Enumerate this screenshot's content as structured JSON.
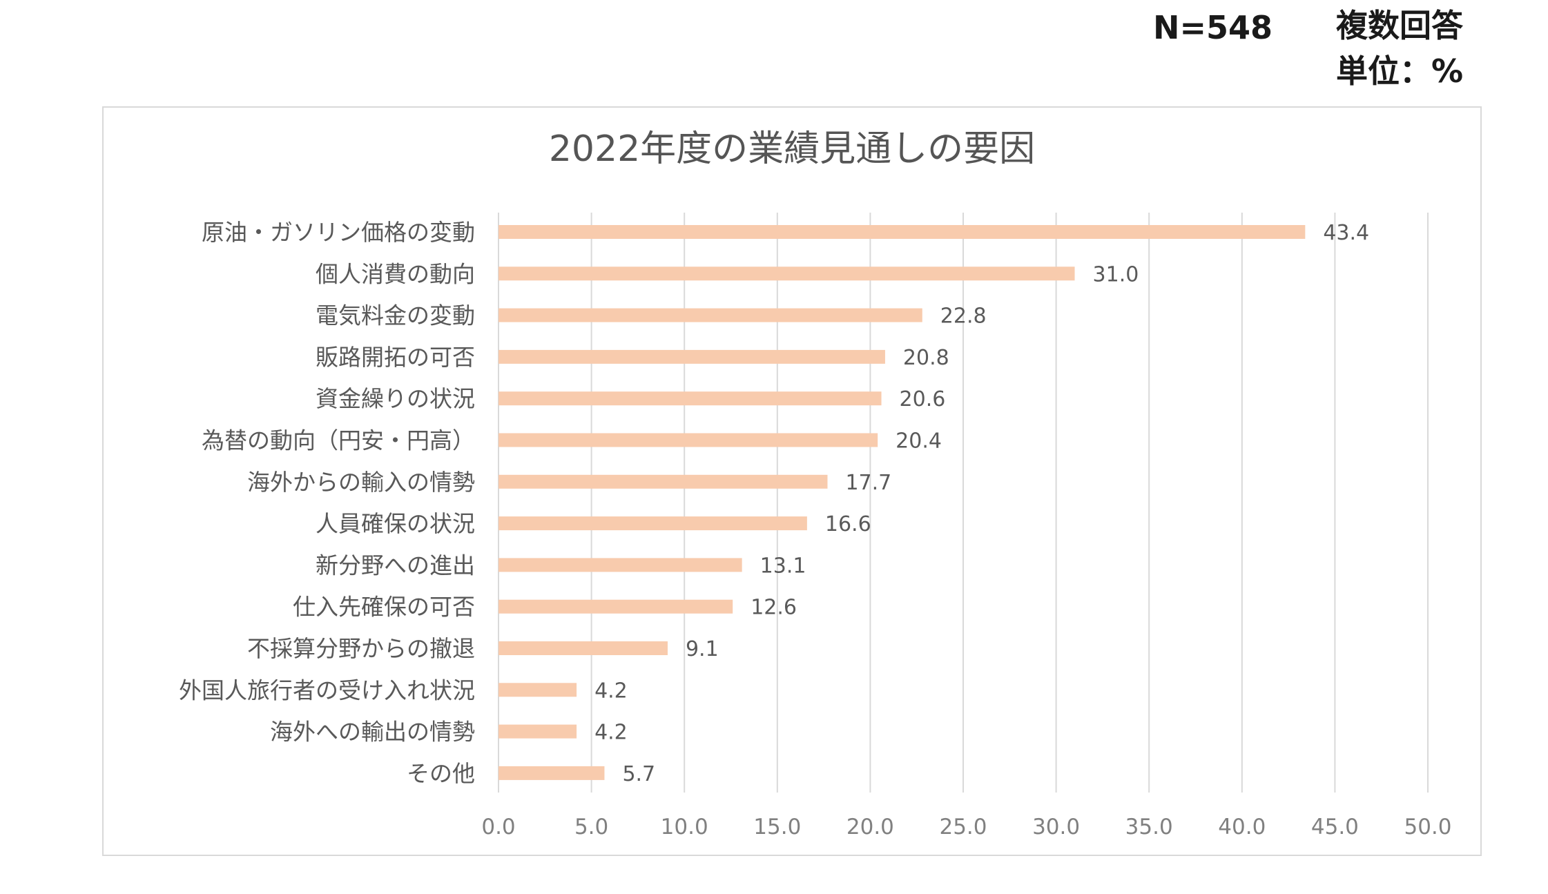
{
  "header": {
    "n_label": "N=548",
    "multi_label": "複数回答",
    "unit_label": "単位：%"
  },
  "chart_data": {
    "type": "bar",
    "orientation": "horizontal",
    "title": "2022年度の業績見通しの要因",
    "categories": [
      "原油・ガソリン価格の変動",
      "個人消費の動向",
      "電気料金の変動",
      "販路開拓の可否",
      "資金繰りの状況",
      "為替の動向（円安・円高）",
      "海外からの輸入の情勢",
      "人員確保の状況",
      "新分野への進出",
      "仕入先確保の可否",
      "不採算分野からの撤退",
      "外国人旅行者の受け入れ状況",
      "海外への輸出の情勢",
      "その他"
    ],
    "values": [
      43.4,
      31.0,
      22.8,
      20.8,
      20.6,
      20.4,
      17.7,
      16.6,
      13.1,
      12.6,
      9.1,
      4.2,
      4.2,
      5.7
    ],
    "value_labels": [
      "43.4",
      "31.0",
      "22.8",
      "20.8",
      "20.6",
      "20.4",
      "17.7",
      "16.6",
      "13.1",
      "12.6",
      "9.1",
      "4.2",
      "4.2",
      "5.7"
    ],
    "xlim": [
      0,
      50
    ],
    "ticks": [
      0,
      5,
      10,
      15,
      20,
      25,
      30,
      35,
      40,
      45,
      50
    ],
    "tick_labels": [
      "0.0",
      "5.0",
      "10.0",
      "15.0",
      "20.0",
      "25.0",
      "30.0",
      "35.0",
      "40.0",
      "45.0",
      "50.0"
    ],
    "grid": true,
    "xlabel": "",
    "ylabel": "",
    "colors": {
      "bar": "#f8cbad",
      "grid": "#d9d9d9"
    }
  }
}
